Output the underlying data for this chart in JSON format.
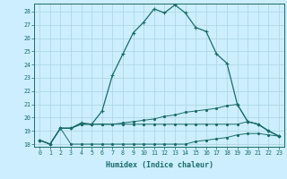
{
  "xlabel": "Humidex (Indice chaleur)",
  "background_color": "#cceeff",
  "grid_color": "#aad4dd",
  "line_color": "#1a6b6b",
  "xlim": [
    -0.5,
    23.5
  ],
  "ylim": [
    17.8,
    28.6
  ],
  "xticks": [
    0,
    1,
    2,
    3,
    4,
    5,
    6,
    7,
    8,
    9,
    10,
    11,
    12,
    13,
    14,
    15,
    16,
    17,
    18,
    19,
    20,
    21,
    22,
    23
  ],
  "yticks": [
    18,
    19,
    20,
    21,
    22,
    23,
    24,
    25,
    26,
    27,
    28
  ],
  "line1_x": [
    0,
    1,
    2,
    3,
    4,
    5,
    6,
    7,
    8,
    9,
    10,
    11,
    12,
    13,
    14,
    15,
    16,
    17,
    18,
    19,
    20,
    21,
    22,
    23
  ],
  "line1_y": [
    18.3,
    18.0,
    19.2,
    19.2,
    19.6,
    19.5,
    20.5,
    23.2,
    24.8,
    26.4,
    27.2,
    28.2,
    27.9,
    28.5,
    27.9,
    26.8,
    26.5,
    24.8,
    24.1,
    21.0,
    19.7,
    19.5,
    19.0,
    18.6
  ],
  "line2_x": [
    0,
    1,
    2,
    3,
    4,
    5,
    6,
    7,
    8,
    9,
    10,
    11,
    12,
    13,
    14,
    15,
    16,
    17,
    18,
    19,
    20,
    21,
    22,
    23
  ],
  "line2_y": [
    18.3,
    18.0,
    19.2,
    19.2,
    19.5,
    19.5,
    19.5,
    19.5,
    19.6,
    19.7,
    19.8,
    19.9,
    20.1,
    20.2,
    20.4,
    20.5,
    20.6,
    20.7,
    20.9,
    21.0,
    19.7,
    19.5,
    19.0,
    18.6
  ],
  "line3_x": [
    0,
    1,
    2,
    3,
    4,
    5,
    6,
    7,
    8,
    9,
    10,
    11,
    12,
    13,
    14,
    15,
    16,
    17,
    18,
    19,
    20,
    21,
    22,
    23
  ],
  "line3_y": [
    18.3,
    18.0,
    19.2,
    19.2,
    19.5,
    19.5,
    19.5,
    19.5,
    19.5,
    19.5,
    19.5,
    19.5,
    19.5,
    19.5,
    19.5,
    19.5,
    19.5,
    19.5,
    19.5,
    19.5,
    19.7,
    19.5,
    19.0,
    18.6
  ],
  "line4_x": [
    0,
    1,
    2,
    3,
    4,
    5,
    6,
    7,
    8,
    9,
    10,
    11,
    12,
    13,
    14,
    15,
    16,
    17,
    18,
    19,
    20,
    21,
    22,
    23
  ],
  "line4_y": [
    18.3,
    18.0,
    19.2,
    18.0,
    18.0,
    18.0,
    18.0,
    18.0,
    18.0,
    18.0,
    18.0,
    18.0,
    18.0,
    18.0,
    18.0,
    18.2,
    18.3,
    18.4,
    18.5,
    18.7,
    18.8,
    18.8,
    18.7,
    18.6
  ]
}
